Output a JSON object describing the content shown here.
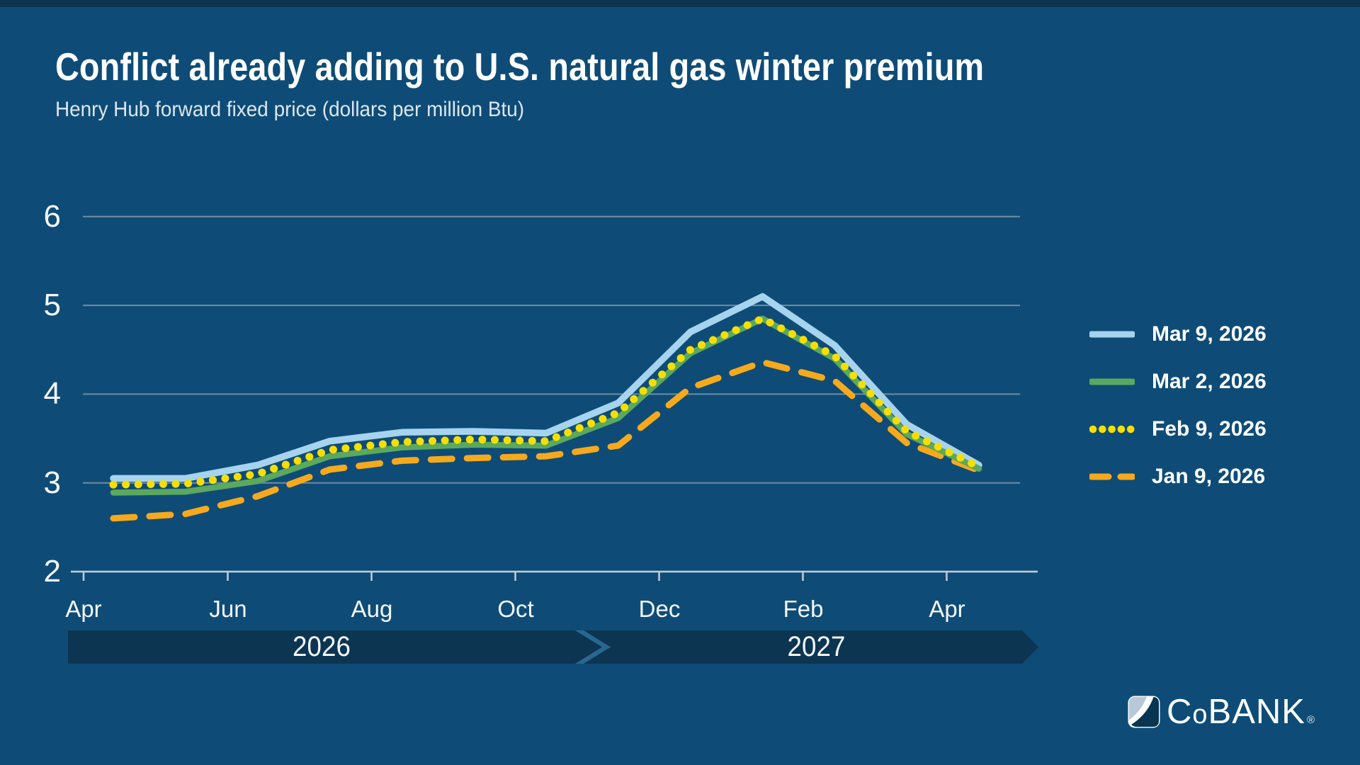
{
  "header": {
    "title": "Conflict already adding to U.S. natural gas winter premium",
    "subtitle": "Henry Hub forward fixed price (dollars per million Btu)"
  },
  "chart_data": {
    "type": "line",
    "title": "Conflict already adding to U.S. natural gas winter premium",
    "subtitle": "Henry Hub forward fixed price (dollars per million Btu)",
    "x": [
      "Apr 2026",
      "May 2026",
      "Jun 2026",
      "Jul 2026",
      "Aug 2026",
      "Sep 2026",
      "Oct 2026",
      "Nov 2026",
      "Dec 2026",
      "Jan 2027",
      "Feb 2027",
      "Mar 2027",
      "Apr 2027"
    ],
    "x_tick_labels": [
      "Apr",
      "Jun",
      "Aug",
      "Oct",
      "Dec",
      "Feb",
      "Apr"
    ],
    "x_axis_years": [
      "2026",
      "2027"
    ],
    "y_ticks": [
      2,
      3,
      4,
      5,
      6
    ],
    "y_tick_labels": [
      "2",
      "3",
      "4",
      "5",
      "6"
    ],
    "ylim": [
      2,
      6
    ],
    "grid": "horizontal",
    "legend_position": "right",
    "series": [
      {
        "name": "Mar 9, 2026",
        "color": "#A6D3EE",
        "style": "solid",
        "values": [
          3.05,
          3.05,
          3.2,
          3.47,
          3.57,
          3.58,
          3.56,
          3.9,
          4.7,
          5.1,
          4.55,
          3.66,
          3.2
        ]
      },
      {
        "name": "Mar 2, 2026",
        "color": "#5BA85F",
        "style": "solid",
        "values": [
          2.89,
          2.9,
          3.02,
          3.3,
          3.4,
          3.43,
          3.42,
          3.73,
          4.46,
          4.85,
          4.4,
          3.55,
          3.16
        ]
      },
      {
        "name": "Feb 9, 2026",
        "color": "#F6DF00",
        "style": "dotted",
        "values": [
          2.98,
          2.99,
          3.1,
          3.37,
          3.46,
          3.49,
          3.47,
          3.79,
          4.5,
          4.85,
          4.43,
          3.58,
          3.18
        ]
      },
      {
        "name": "Jan 9, 2026",
        "color": "#F7A91C",
        "style": "dashed",
        "values": [
          2.6,
          2.65,
          2.85,
          3.15,
          3.25,
          3.28,
          3.3,
          3.42,
          4.07,
          4.36,
          4.15,
          3.45,
          3.14
        ]
      }
    ]
  },
  "timeline": {
    "left_label": "2026",
    "right_label": "2027"
  },
  "branding": {
    "wordmark_c": "C",
    "wordmark_o": "o",
    "wordmark_rest": "BANK",
    "registered": "®"
  },
  "colors": {
    "background": "#0E4C77",
    "top_stripe": "#0A344F",
    "timeline_bar": "#0C3552",
    "timeline_chevron": "#2A6790",
    "gridline": "#8298A9",
    "axis": "#C3CFDA",
    "logo_light": "#B7C9D7",
    "logo_dark": "#093552"
  }
}
